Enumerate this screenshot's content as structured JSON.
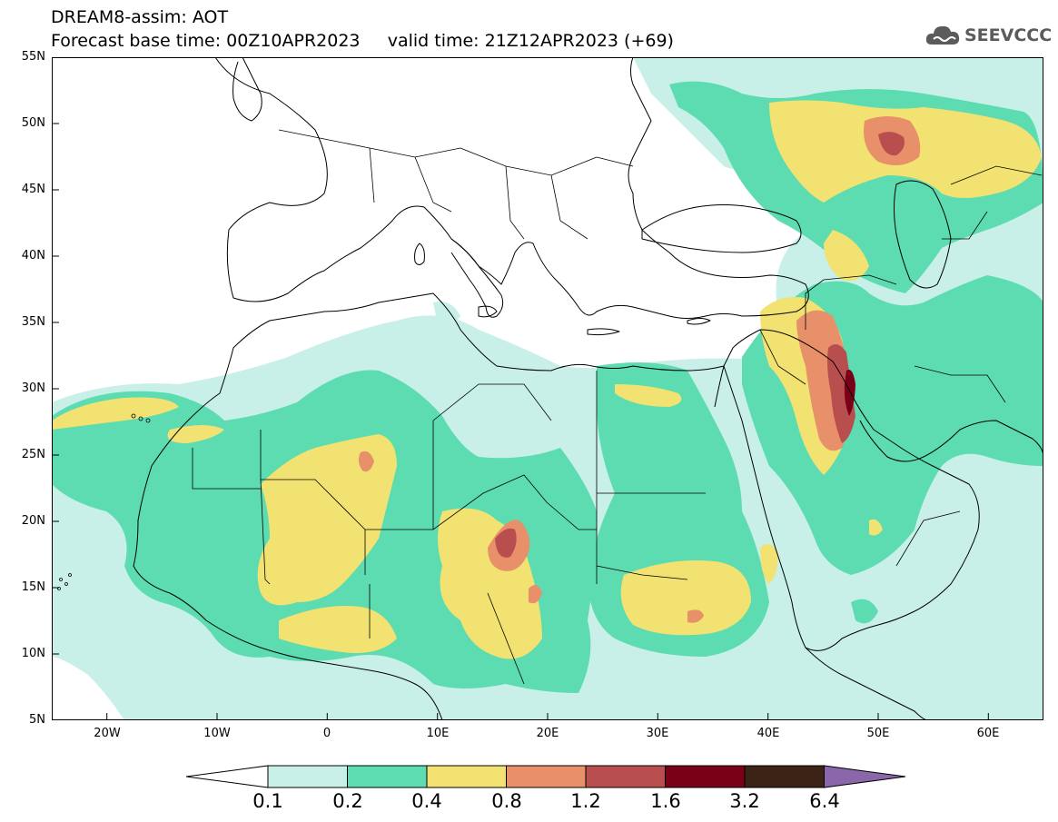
{
  "title": {
    "line1": "DREAM8-assim: AOT",
    "line2": "Forecast base time: 00Z10APR2023     valid time: 21Z12APR2023 (+69)"
  },
  "logo": {
    "text": "SEEVCCC",
    "icon": "cloud-icon"
  },
  "map": {
    "lon_range": [
      -25,
      65
    ],
    "lat_range": [
      5,
      55
    ],
    "y_ticks": [
      "55N",
      "50N",
      "45N",
      "40N",
      "35N",
      "30N",
      "25N",
      "20N",
      "15N",
      "10N",
      "5N"
    ],
    "x_ticks": [
      "20W",
      "10W",
      "0",
      "10E",
      "20E",
      "30E",
      "40E",
      "50E",
      "60E"
    ],
    "colors": {
      "c1": "#c8f0e8",
      "c2": "#5cdcb0",
      "c3": "#f2e271",
      "c4": "#e8906a",
      "c5": "#b84e4e",
      "c6": "#7a0018",
      "c7": "#3d2316",
      "c8": "#8a66aa"
    }
  },
  "legend": {
    "labels": [
      "0.1",
      "0.2",
      "0.4",
      "0.8",
      "1.2",
      "1.6",
      "3.2",
      "6.4"
    ],
    "colors": [
      "#c8f0e8",
      "#5cdcb0",
      "#f2e271",
      "#e8906a",
      "#b84e4e",
      "#7a0018",
      "#3d2316"
    ]
  }
}
